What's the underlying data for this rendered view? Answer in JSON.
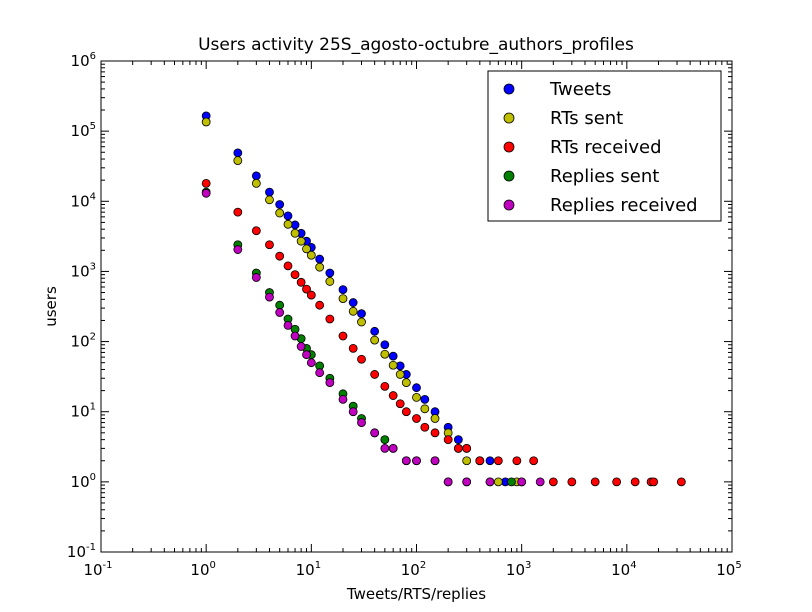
{
  "chart_data": {
    "type": "scatter",
    "title": "Users activity 25S_agosto-octubre_authors_profiles",
    "xlabel": "Tweets/RTS/replies",
    "ylabel": "users",
    "xscale": "log",
    "yscale": "log",
    "xlim": [
      0.1,
      100000
    ],
    "ylim": [
      0.1,
      1000000
    ],
    "x_ticks": [
      {
        "base": "10",
        "exp": "-1",
        "value": 0.1
      },
      {
        "base": "10",
        "exp": "0",
        "value": 1
      },
      {
        "base": "10",
        "exp": "1",
        "value": 10
      },
      {
        "base": "10",
        "exp": "2",
        "value": 100
      },
      {
        "base": "10",
        "exp": "3",
        "value": 1000
      },
      {
        "base": "10",
        "exp": "4",
        "value": 10000
      },
      {
        "base": "10",
        "exp": "5",
        "value": 100000
      }
    ],
    "y_ticks": [
      {
        "base": "10",
        "exp": "-1",
        "value": 0.1
      },
      {
        "base": "10",
        "exp": "0",
        "value": 1
      },
      {
        "base": "10",
        "exp": "1",
        "value": 10
      },
      {
        "base": "10",
        "exp": "2",
        "value": 100
      },
      {
        "base": "10",
        "exp": "3",
        "value": 1000
      },
      {
        "base": "10",
        "exp": "4",
        "value": 10000
      },
      {
        "base": "10",
        "exp": "5",
        "value": 100000
      },
      {
        "base": "10",
        "exp": "6",
        "value": 1000000
      }
    ],
    "legend_position": "top-right",
    "grid": false,
    "series": [
      {
        "name": "Tweets",
        "color": "#0000ff",
        "points": [
          [
            1,
            165000
          ],
          [
            2,
            49000
          ],
          [
            3,
            23000
          ],
          [
            4,
            13500
          ],
          [
            5,
            9000
          ],
          [
            6,
            6200
          ],
          [
            7,
            4600
          ],
          [
            8,
            3500
          ],
          [
            9,
            2700
          ],
          [
            10,
            2200
          ],
          [
            12,
            1500
          ],
          [
            15,
            950
          ],
          [
            20,
            550
          ],
          [
            25,
            360
          ],
          [
            30,
            250
          ],
          [
            40,
            140
          ],
          [
            50,
            90
          ],
          [
            60,
            62
          ],
          [
            70,
            45
          ],
          [
            80,
            34
          ],
          [
            100,
            22
          ],
          [
            120,
            15
          ],
          [
            150,
            10
          ],
          [
            200,
            6
          ],
          [
            250,
            4
          ],
          [
            300,
            3
          ],
          [
            400,
            2
          ],
          [
            500,
            2
          ],
          [
            700,
            1
          ],
          [
            1000,
            1
          ]
        ]
      },
      {
        "name": "RTs sent",
        "color": "#bfbf00",
        "points": [
          [
            1,
            135000
          ],
          [
            2,
            38000
          ],
          [
            3,
            18000
          ],
          [
            4,
            10500
          ],
          [
            5,
            6800
          ],
          [
            6,
            4700
          ],
          [
            7,
            3500
          ],
          [
            8,
            2700
          ],
          [
            9,
            2100
          ],
          [
            10,
            1700
          ],
          [
            12,
            1150
          ],
          [
            15,
            720
          ],
          [
            20,
            410
          ],
          [
            25,
            270
          ],
          [
            30,
            190
          ],
          [
            40,
            105
          ],
          [
            50,
            66
          ],
          [
            60,
            46
          ],
          [
            70,
            34
          ],
          [
            80,
            26
          ],
          [
            100,
            16
          ],
          [
            120,
            11
          ],
          [
            150,
            8
          ],
          [
            200,
            5
          ],
          [
            250,
            3
          ],
          [
            300,
            2
          ],
          [
            400,
            2
          ],
          [
            600,
            1
          ],
          [
            900,
            1
          ]
        ]
      },
      {
        "name": "RTs received",
        "color": "#ff0000",
        "points": [
          [
            1,
            18000
          ],
          [
            2,
            7000
          ],
          [
            3,
            3800
          ],
          [
            4,
            2400
          ],
          [
            5,
            1650
          ],
          [
            6,
            1200
          ],
          [
            7,
            900
          ],
          [
            8,
            700
          ],
          [
            9,
            560
          ],
          [
            10,
            460
          ],
          [
            12,
            330
          ],
          [
            15,
            210
          ],
          [
            20,
            120
          ],
          [
            25,
            80
          ],
          [
            30,
            56
          ],
          [
            40,
            34
          ],
          [
            50,
            23
          ],
          [
            60,
            17
          ],
          [
            70,
            13
          ],
          [
            80,
            10
          ],
          [
            100,
            8
          ],
          [
            120,
            6
          ],
          [
            150,
            5
          ],
          [
            200,
            4
          ],
          [
            250,
            3
          ],
          [
            300,
            3
          ],
          [
            400,
            2
          ],
          [
            600,
            2
          ],
          [
            900,
            2
          ],
          [
            1300,
            2
          ],
          [
            2000,
            1
          ],
          [
            3000,
            1
          ],
          [
            5000,
            1
          ],
          [
            8000,
            1
          ],
          [
            12000,
            1
          ],
          [
            17000,
            1
          ],
          [
            18000,
            1
          ],
          [
            33000,
            1
          ]
        ]
      },
      {
        "name": "Replies sent",
        "color": "#008000",
        "points": [
          [
            1,
            13500
          ],
          [
            2,
            2400
          ],
          [
            3,
            950
          ],
          [
            4,
            500
          ],
          [
            5,
            330
          ],
          [
            6,
            210
          ],
          [
            7,
            150
          ],
          [
            8,
            110
          ],
          [
            9,
            80
          ],
          [
            10,
            65
          ],
          [
            12,
            45
          ],
          [
            15,
            30
          ],
          [
            20,
            18
          ],
          [
            25,
            12
          ],
          [
            30,
            8
          ],
          [
            40,
            5
          ],
          [
            50,
            4
          ],
          [
            60,
            3
          ],
          [
            80,
            2
          ],
          [
            100,
            2
          ],
          [
            150,
            2
          ],
          [
            200,
            1
          ],
          [
            300,
            1
          ],
          [
            500,
            1
          ],
          [
            800,
            1
          ]
        ]
      },
      {
        "name": "Replies received",
        "color": "#bf00bf",
        "points": [
          [
            1,
            13000
          ],
          [
            2,
            2050
          ],
          [
            3,
            820
          ],
          [
            4,
            430
          ],
          [
            5,
            260
          ],
          [
            6,
            170
          ],
          [
            7,
            120
          ],
          [
            8,
            85
          ],
          [
            9,
            65
          ],
          [
            10,
            50
          ],
          [
            12,
            36
          ],
          [
            15,
            26
          ],
          [
            20,
            15
          ],
          [
            25,
            10
          ],
          [
            30,
            7
          ],
          [
            40,
            5
          ],
          [
            50,
            3
          ],
          [
            60,
            3
          ],
          [
            80,
            2
          ],
          [
            100,
            2
          ],
          [
            150,
            2
          ],
          [
            200,
            1
          ],
          [
            300,
            1
          ],
          [
            500,
            1
          ],
          [
            1000,
            1
          ],
          [
            1500,
            1
          ]
        ]
      }
    ]
  }
}
